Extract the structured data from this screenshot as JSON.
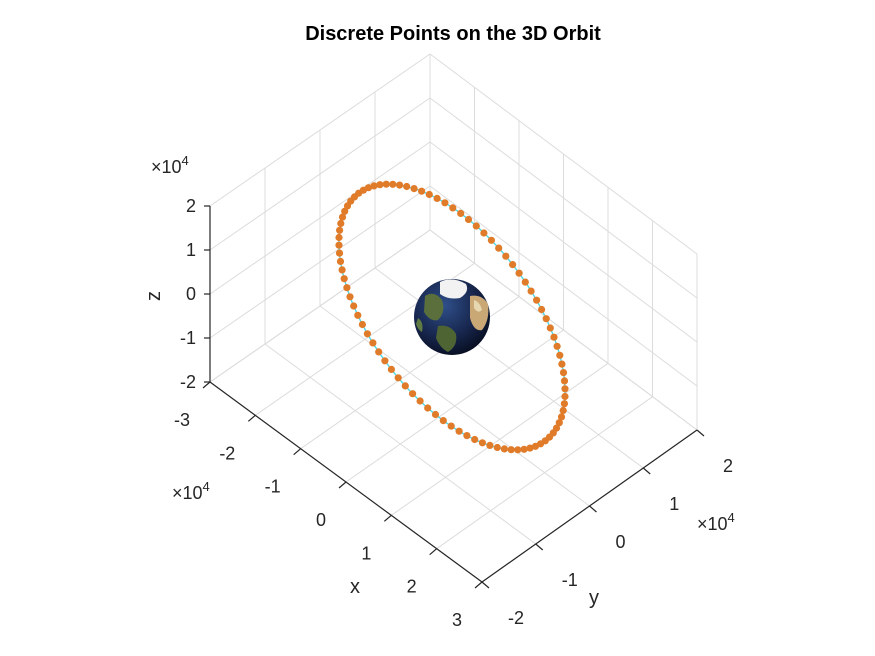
{
  "chart_data": {
    "type": "scatter",
    "title": "Discrete Points on the 3D Orbit",
    "xlabel": "x",
    "ylabel": "y",
    "zlabel": "z",
    "x_exponent": {
      "base": "×10",
      "power": "4"
    },
    "y_exponent": {
      "base": "×10",
      "power": "4"
    },
    "z_exponent": {
      "base": "×10",
      "power": "4"
    },
    "x_ticks": [
      "-3",
      "-2",
      "-1",
      "0",
      "1",
      "2",
      "3"
    ],
    "y_ticks": [
      "-2",
      "-1",
      "0",
      "1",
      "2"
    ],
    "z_ticks": [
      "2",
      "1",
      "0",
      "-1",
      "-2"
    ],
    "xlim": [
      -30000,
      30000
    ],
    "ylim": [
      -25000,
      25000
    ],
    "zlim": [
      -25000,
      25000
    ],
    "grid": true,
    "orbit_line_color": "#4dd8e6",
    "point_color": "#e07b2a",
    "central_body": "earth-globe",
    "series": [
      {
        "type": "scatter3d",
        "num_points": 90,
        "description_points": "orbit samples",
        "semi_major_axis": 26560,
        "inclination_deg": 55
      }
    ]
  }
}
